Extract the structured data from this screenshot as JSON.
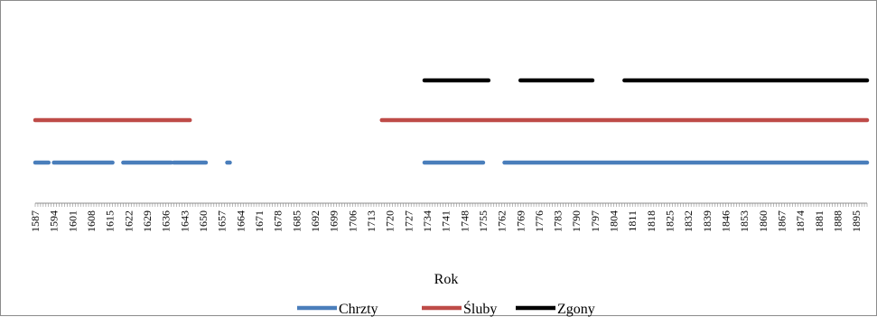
{
  "chart_data": {
    "type": "line",
    "title": "",
    "xlabel": "Rok",
    "ylabel": "",
    "xlim": [
      1587,
      1899
    ],
    "grid": false,
    "legend_position": "bottom",
    "x_ticks": [
      "1587",
      "1594",
      "1601",
      "1608",
      "1615",
      "1622",
      "1629",
      "1636",
      "1643",
      "1650",
      "1657",
      "1664",
      "1671",
      "1678",
      "1685",
      "1692",
      "1699",
      "1706",
      "1713",
      "1720",
      "1727",
      "1734",
      "1741",
      "1748",
      "1755",
      "1762",
      "1769",
      "1776",
      "1783",
      "1790",
      "1797",
      "1804",
      "1811",
      "1818",
      "1825",
      "1832",
      "1839",
      "1846",
      "1853",
      "1860",
      "1867",
      "1874",
      "1881",
      "1888",
      "1895"
    ],
    "series": [
      {
        "name": "Chrzty",
        "color": "#4a7ebb",
        "level": 1,
        "segments": [
          [
            1587,
            1592
          ],
          [
            1594,
            1616
          ],
          [
            1620,
            1638
          ],
          [
            1639,
            1651
          ],
          [
            1659,
            1660
          ],
          [
            1733,
            1755
          ],
          [
            1763,
            1899
          ]
        ]
      },
      {
        "name": "Śluby",
        "color": "#be4b48",
        "level": 2,
        "segments": [
          [
            1587,
            1645
          ],
          [
            1717,
            1899
          ]
        ]
      },
      {
        "name": "Zgony",
        "color": "#000000",
        "level": 3,
        "segments": [
          [
            1733,
            1757
          ],
          [
            1769,
            1796
          ],
          [
            1808,
            1899
          ]
        ]
      }
    ]
  }
}
